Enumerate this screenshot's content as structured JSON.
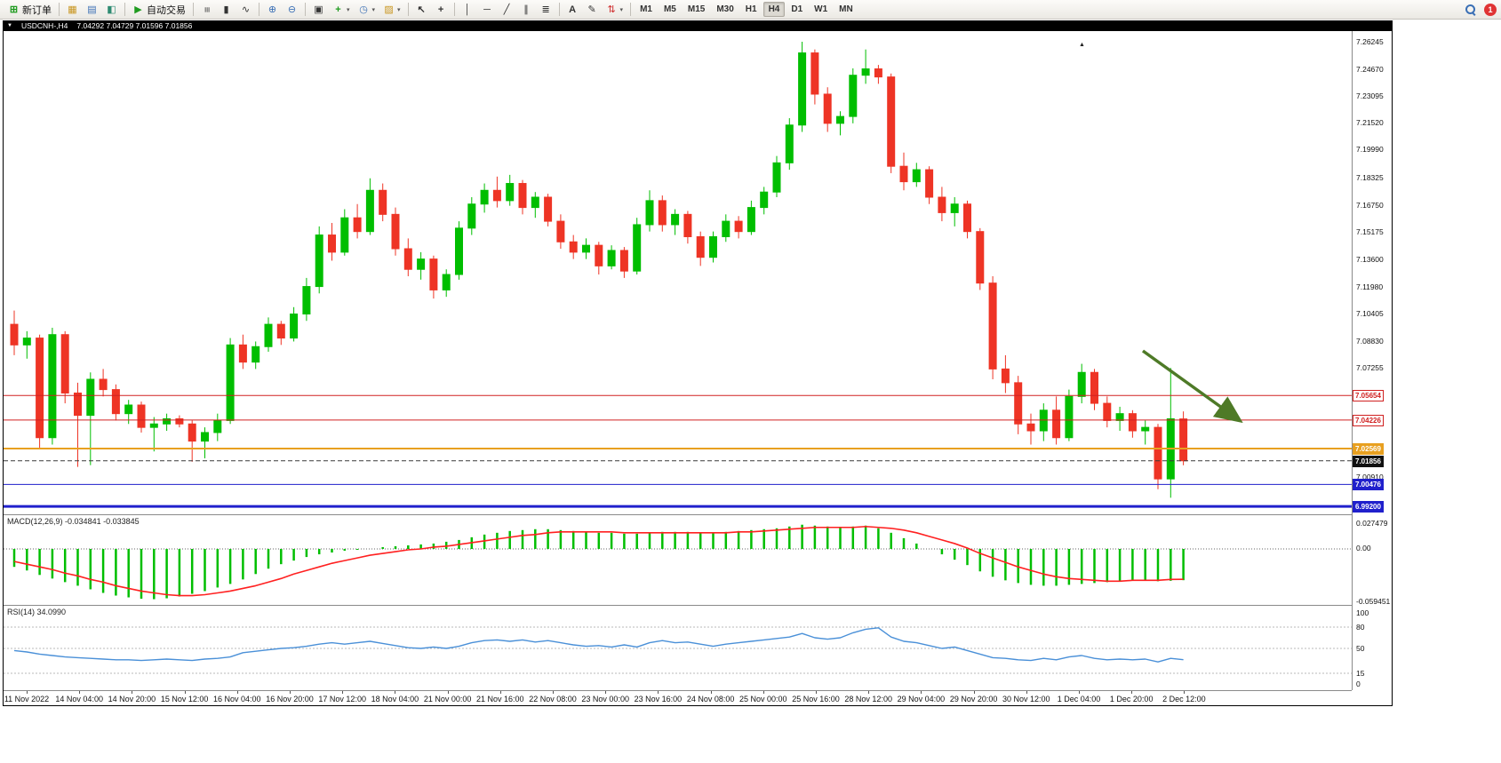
{
  "toolbar": {
    "new_order_label": "新订单",
    "autotrading_label": "自动交易",
    "timeframes": [
      "M1",
      "M5",
      "M15",
      "M30",
      "H1",
      "H4",
      "D1",
      "W1",
      "MN"
    ],
    "active_timeframe": "H4",
    "badge": "1"
  },
  "icons": {
    "new_order": "⊞",
    "market_watch": "▦",
    "data_window": "▤",
    "terminal": "◧",
    "autotrading_play": "▶",
    "bar_chart": "≡",
    "candle_chart": "▮",
    "line_chart": "∿",
    "zoom_in": "⊕",
    "zoom_out": "⊖",
    "tile_windows": "▣",
    "indicators": "+",
    "periods": "◷",
    "template": "▨",
    "cursor": "↖",
    "crosshair": "+",
    "vline": "│",
    "hline": "─",
    "trendline": "╱",
    "channel": "∥",
    "fibonacci": "≣",
    "text": "A",
    "text_label": "✎",
    "arrows": "⇅",
    "caret": "▾",
    "titlebar_caret": "▼",
    "chart_shift": "▲"
  },
  "chart": {
    "title": "USDCNH-,H4",
    "ohlc": "7.04292 7.04729 7.01596 7.01856"
  },
  "chart_data": {
    "type": "candlestick",
    "symbol": "USDCNH-",
    "timeframe": "H4",
    "current_bar": {
      "open": 7.04292,
      "high": 7.04729,
      "low": 7.01596,
      "close": 7.01856
    },
    "ylim": [
      6.9874,
      7.2687
    ],
    "up_color": "#00BE00",
    "down_color": "#EE3425",
    "candles": [
      [
        7.098,
        7.106,
        7.08,
        7.086
      ],
      [
        7.086,
        7.094,
        7.078,
        7.09
      ],
      [
        7.09,
        7.092,
        7.026,
        7.032
      ],
      [
        7.032,
        7.096,
        7.028,
        7.092
      ],
      [
        7.092,
        7.094,
        7.052,
        7.058
      ],
      [
        7.058,
        7.064,
        7.015,
        7.045
      ],
      [
        7.045,
        7.07,
        7.016,
        7.066
      ],
      [
        7.066,
        7.072,
        7.056,
        7.06
      ],
      [
        7.06,
        7.063,
        7.042,
        7.046
      ],
      [
        7.046,
        7.054,
        7.04,
        7.051
      ],
      [
        7.051,
        7.053,
        7.035,
        7.038
      ],
      [
        7.038,
        7.044,
        7.024,
        7.04
      ],
      [
        7.04,
        7.046,
        7.036,
        7.043
      ],
      [
        7.043,
        7.045,
        7.038,
        7.04
      ],
      [
        7.04,
        7.042,
        7.018,
        7.03
      ],
      [
        7.03,
        7.038,
        7.02,
        7.035
      ],
      [
        7.035,
        7.046,
        7.03,
        7.042
      ],
      [
        7.042,
        7.09,
        7.04,
        7.086
      ],
      [
        7.086,
        7.092,
        7.072,
        7.076
      ],
      [
        7.076,
        7.088,
        7.072,
        7.085
      ],
      [
        7.085,
        7.102,
        7.082,
        7.098
      ],
      [
        7.098,
        7.1,
        7.086,
        7.09
      ],
      [
        7.09,
        7.108,
        7.088,
        7.104
      ],
      [
        7.104,
        7.125,
        7.1,
        7.12
      ],
      [
        7.12,
        7.155,
        7.116,
        7.15
      ],
      [
        7.15,
        7.157,
        7.135,
        7.14
      ],
      [
        7.14,
        7.165,
        7.138,
        7.16
      ],
      [
        7.16,
        7.168,
        7.148,
        7.152
      ],
      [
        7.152,
        7.183,
        7.15,
        7.176
      ],
      [
        7.176,
        7.18,
        7.158,
        7.162
      ],
      [
        7.162,
        7.166,
        7.138,
        7.142
      ],
      [
        7.142,
        7.148,
        7.126,
        7.13
      ],
      [
        7.13,
        7.14,
        7.124,
        7.136
      ],
      [
        7.136,
        7.138,
        7.113,
        7.118
      ],
      [
        7.118,
        7.13,
        7.114,
        7.127
      ],
      [
        7.127,
        7.158,
        7.124,
        7.154
      ],
      [
        7.154,
        7.172,
        7.15,
        7.168
      ],
      [
        7.168,
        7.18,
        7.163,
        7.176
      ],
      [
        7.176,
        7.184,
        7.166,
        7.17
      ],
      [
        7.17,
        7.185,
        7.167,
        7.18
      ],
      [
        7.18,
        7.182,
        7.162,
        7.166
      ],
      [
        7.166,
        7.175,
        7.16,
        7.172
      ],
      [
        7.172,
        7.174,
        7.155,
        7.158
      ],
      [
        7.158,
        7.162,
        7.142,
        7.146
      ],
      [
        7.146,
        7.15,
        7.136,
        7.14
      ],
      [
        7.14,
        7.148,
        7.136,
        7.144
      ],
      [
        7.144,
        7.146,
        7.127,
        7.132
      ],
      [
        7.132,
        7.144,
        7.13,
        7.141
      ],
      [
        7.141,
        7.143,
        7.125,
        7.129
      ],
      [
        7.129,
        7.16,
        7.127,
        7.156
      ],
      [
        7.156,
        7.176,
        7.152,
        7.17
      ],
      [
        7.17,
        7.173,
        7.152,
        7.156
      ],
      [
        7.156,
        7.165,
        7.15,
        7.162
      ],
      [
        7.162,
        7.164,
        7.145,
        7.149
      ],
      [
        7.149,
        7.152,
        7.132,
        7.137
      ],
      [
        7.137,
        7.152,
        7.134,
        7.149
      ],
      [
        7.149,
        7.162,
        7.146,
        7.158
      ],
      [
        7.158,
        7.161,
        7.148,
        7.152
      ],
      [
        7.152,
        7.17,
        7.15,
        7.166
      ],
      [
        7.166,
        7.178,
        7.162,
        7.175
      ],
      [
        7.175,
        7.196,
        7.172,
        7.192
      ],
      [
        7.192,
        7.218,
        7.188,
        7.214
      ],
      [
        7.214,
        7.2625,
        7.21,
        7.256
      ],
      [
        7.256,
        7.258,
        7.226,
        7.232
      ],
      [
        7.232,
        7.236,
        7.21,
        7.215
      ],
      [
        7.215,
        7.222,
        7.208,
        7.219
      ],
      [
        7.219,
        7.247,
        7.215,
        7.243
      ],
      [
        7.243,
        7.258,
        7.238,
        7.2467
      ],
      [
        7.2467,
        7.249,
        7.238,
        7.242
      ],
      [
        7.242,
        7.244,
        7.186,
        7.19
      ],
      [
        7.19,
        7.198,
        7.176,
        7.181
      ],
      [
        7.181,
        7.192,
        7.178,
        7.188
      ],
      [
        7.188,
        7.19,
        7.168,
        7.172
      ],
      [
        7.172,
        7.178,
        7.158,
        7.163
      ],
      [
        7.163,
        7.172,
        7.155,
        7.168
      ],
      [
        7.168,
        7.17,
        7.148,
        7.152
      ],
      [
        7.152,
        7.154,
        7.118,
        7.122
      ],
      [
        7.122,
        7.126,
        7.066,
        7.072
      ],
      [
        7.072,
        7.08,
        7.058,
        7.064
      ],
      [
        7.064,
        7.068,
        7.034,
        7.04
      ],
      [
        7.04,
        7.046,
        7.028,
        7.036
      ],
      [
        7.036,
        7.052,
        7.03,
        7.048
      ],
      [
        7.048,
        7.056,
        7.028,
        7.032
      ],
      [
        7.032,
        7.06,
        7.03,
        7.056
      ],
      [
        7.056,
        7.075,
        7.052,
        7.07
      ],
      [
        7.07,
        7.072,
        7.048,
        7.052
      ],
      [
        7.052,
        7.056,
        7.038,
        7.042
      ],
      [
        7.042,
        7.05,
        7.036,
        7.046
      ],
      [
        7.046,
        7.048,
        7.032,
        7.036
      ],
      [
        7.036,
        7.042,
        7.028,
        7.038
      ],
      [
        7.038,
        7.04,
        7.002,
        7.008
      ],
      [
        7.008,
        7.0726,
        6.997,
        7.043
      ],
      [
        7.04292,
        7.04729,
        7.01596,
        7.01856
      ]
    ],
    "x_labels": [
      "11 Nov 2022",
      "14 Nov 04:00",
      "14 Nov 20:00",
      "15 Nov 12:00",
      "16 Nov 04:00",
      "16 Nov 20:00",
      "17 Nov 12:00",
      "18 Nov 04:00",
      "21 Nov 00:00",
      "21 Nov 16:00",
      "22 Nov 08:00",
      "23 Nov 00:00",
      "23 Nov 16:00",
      "24 Nov 08:00",
      "25 Nov 00:00",
      "25 Nov 16:00",
      "28 Nov 12:00",
      "29 Nov 04:00",
      "29 Nov 20:00",
      "30 Nov 12:00",
      "1 Dec 04:00",
      "1 Dec 20:00",
      "2 Dec 12:00"
    ],
    "price_ticks": [
      {
        "label": "7.26245",
        "value": 7.26245
      },
      {
        "label": "7.24670",
        "value": 7.2467
      },
      {
        "label": "7.23095",
        "value": 7.23095
      },
      {
        "label": "7.21520",
        "value": 7.2152
      },
      {
        "label": "7.19990",
        "value": 7.1999
      },
      {
        "label": "7.18325",
        "value": 7.18325
      },
      {
        "label": "7.16750",
        "value": 7.1675
      },
      {
        "label": "7.15175",
        "value": 7.15175
      },
      {
        "label": "7.13600",
        "value": 7.136
      },
      {
        "label": "7.11980",
        "value": 7.1198
      },
      {
        "label": "7.10405",
        "value": 7.10405
      },
      {
        "label": "7.08830",
        "value": 7.0883
      },
      {
        "label": "7.07255",
        "value": 7.07255
      },
      {
        "label": "7.00910",
        "value": 7.0091
      }
    ],
    "levels": [
      {
        "name": "resistance-line-upper",
        "label": "7.05654",
        "price": 7.05654,
        "color": "#D02020",
        "width": 1,
        "dash": "",
        "tag_bg": "#FFFFFF",
        "tag_fg": "#D02020",
        "tag_border": "#D02020"
      },
      {
        "name": "resistance-line-lower",
        "label": "7.04226",
        "price": 7.04226,
        "color": "#D02020",
        "width": 1,
        "dash": "",
        "tag_bg": "#FFFFFF",
        "tag_fg": "#D02020",
        "tag_border": "#D02020"
      },
      {
        "name": "support-line-gold",
        "label": "7.02569",
        "price": 7.02569,
        "color": "#E8A020",
        "width": 2,
        "dash": "",
        "tag_bg": "#E8A020",
        "tag_fg": "#FFFFFF",
        "tag_border": "#E8A020"
      },
      {
        "name": "current-price-line",
        "label": "7.01856",
        "price": 7.01856,
        "color": "#3a3a3a",
        "width": 1,
        "dash": "5,3",
        "tag_bg": "#111111",
        "tag_fg": "#FFFFFF",
        "tag_border": "#111111"
      },
      {
        "name": "support-line-blue-upper",
        "label": "7.00476",
        "price": 7.00476,
        "color": "#2020CC",
        "width": 1,
        "dash": "",
        "tag_bg": "#2020CC",
        "tag_fg": "#FFFFFF",
        "tag_border": "#2020CC"
      },
      {
        "name": "support-line-blue-lower",
        "label": "6.99200",
        "price": 6.992,
        "color": "#2020CC",
        "width": 3,
        "dash": "",
        "tag_bg": "#2020CC",
        "tag_fg": "#FFFFFF",
        "tag_border": "#2020CC"
      }
    ],
    "annotation_arrow": {
      "from": [
        1282,
        360
      ],
      "to": [
        1389,
        437
      ],
      "color": "#4E7A27"
    },
    "macd": {
      "label": "MACD(12,26,9)",
      "values_text": "-0.034841 -0.033845",
      "scale_labels": [
        "0.027479",
        "0.00",
        "-0.059451"
      ],
      "ylim": [
        -0.059451,
        0.027479
      ],
      "hist_color": "#00BE00",
      "signal_color": "#FF2020",
      "histogram": [
        -0.02,
        -0.024,
        -0.029,
        -0.033,
        -0.037,
        -0.041,
        -0.045,
        -0.049,
        -0.052,
        -0.054,
        -0.0555,
        -0.056,
        -0.055,
        -0.053,
        -0.05,
        -0.047,
        -0.043,
        -0.039,
        -0.034,
        -0.028,
        -0.022,
        -0.017,
        -0.013,
        -0.009,
        -0.006,
        -0.004,
        -0.002,
        -0.001,
        0.0,
        0.002,
        0.003,
        0.004,
        0.005,
        0.006,
        0.008,
        0.01,
        0.013,
        0.016,
        0.018,
        0.02,
        0.021,
        0.022,
        0.022,
        0.021,
        0.02,
        0.019,
        0.018,
        0.018,
        0.017,
        0.017,
        0.018,
        0.019,
        0.019,
        0.019,
        0.018,
        0.018,
        0.019,
        0.02,
        0.021,
        0.022,
        0.023,
        0.025,
        0.027,
        0.026,
        0.025,
        0.024,
        0.025,
        0.026,
        0.023,
        0.018,
        0.012,
        0.006,
        0.0,
        -0.006,
        -0.012,
        -0.018,
        -0.025,
        -0.031,
        -0.035,
        -0.038,
        -0.04,
        -0.041,
        -0.041,
        -0.04,
        -0.039,
        -0.038,
        -0.037,
        -0.036,
        -0.035,
        -0.035,
        -0.036,
        -0.0355,
        -0.034841
      ],
      "signal": [
        -0.014,
        -0.017,
        -0.02,
        -0.023,
        -0.027,
        -0.03,
        -0.034,
        -0.037,
        -0.041,
        -0.044,
        -0.047,
        -0.049,
        -0.051,
        -0.052,
        -0.052,
        -0.051,
        -0.049,
        -0.047,
        -0.044,
        -0.041,
        -0.037,
        -0.033,
        -0.028,
        -0.024,
        -0.02,
        -0.016,
        -0.013,
        -0.01,
        -0.007,
        -0.005,
        -0.003,
        -0.001,
        0.0,
        0.002,
        0.003,
        0.005,
        0.007,
        0.009,
        0.011,
        0.013,
        0.015,
        0.016,
        0.018,
        0.019,
        0.019,
        0.019,
        0.019,
        0.019,
        0.018,
        0.018,
        0.018,
        0.018,
        0.018,
        0.018,
        0.018,
        0.018,
        0.018,
        0.019,
        0.019,
        0.02,
        0.021,
        0.022,
        0.023,
        0.024,
        0.024,
        0.024,
        0.024,
        0.025,
        0.024,
        0.023,
        0.021,
        0.018,
        0.014,
        0.01,
        0.006,
        0.001,
        -0.005,
        -0.01,
        -0.015,
        -0.02,
        -0.024,
        -0.028,
        -0.031,
        -0.033,
        -0.034,
        -0.035,
        -0.036,
        -0.036,
        -0.035,
        -0.035,
        -0.035,
        -0.034,
        -0.033845
      ]
    },
    "rsi": {
      "label": "RSI(14)",
      "value_text": "34.0990",
      "scale_labels": [
        "100",
        "80",
        "50",
        "15",
        "0"
      ],
      "levels": [
        80,
        50,
        15
      ],
      "ylim": [
        0,
        100
      ],
      "color": "#4A90D8",
      "values": [
        47,
        45,
        42,
        40,
        38,
        37,
        36,
        35,
        34,
        34,
        33,
        34,
        35,
        34,
        33,
        35,
        36,
        38,
        44,
        46,
        48,
        50,
        51,
        53,
        56,
        58,
        56,
        58,
        60,
        57,
        54,
        51,
        50,
        52,
        50,
        53,
        58,
        61,
        62,
        60,
        62,
        59,
        61,
        58,
        55,
        53,
        54,
        52,
        55,
        52,
        58,
        61,
        58,
        59,
        56,
        53,
        56,
        58,
        60,
        62,
        64,
        66,
        71,
        65,
        63,
        65,
        72,
        77,
        79,
        66,
        60,
        58,
        54,
        50,
        52,
        47,
        42,
        37,
        36,
        34,
        33,
        36,
        34,
        38,
        40,
        36,
        34,
        35,
        34,
        35,
        31,
        36,
        34.1
      ]
    }
  }
}
